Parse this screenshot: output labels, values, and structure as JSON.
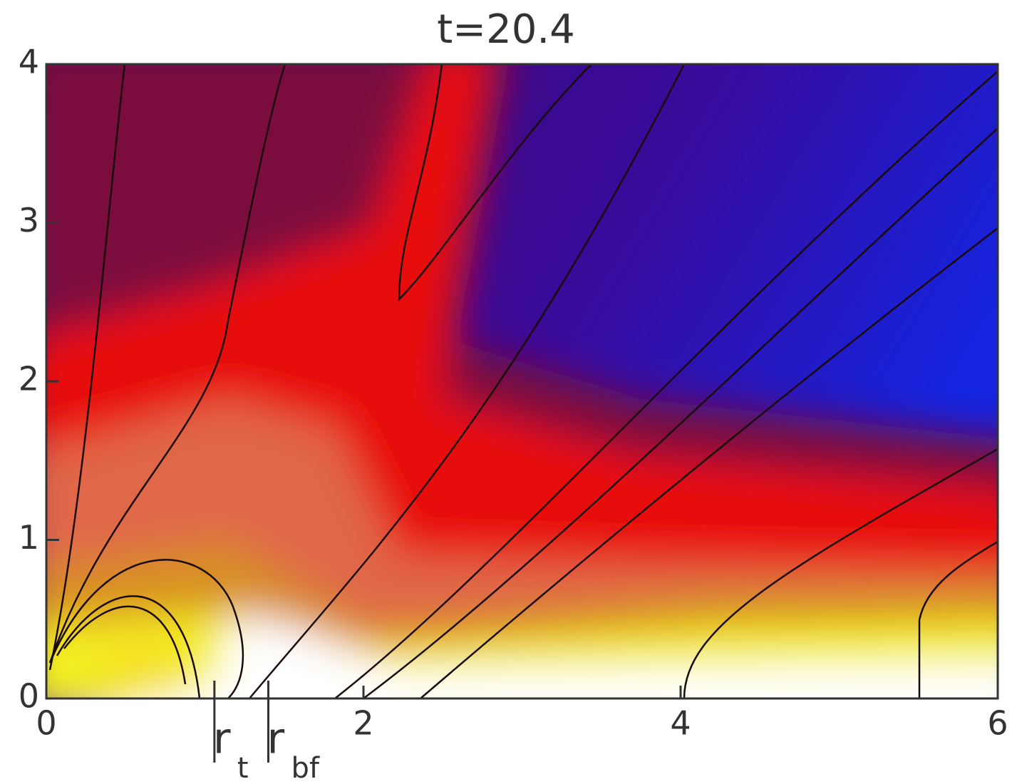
{
  "chart_data": {
    "type": "contour",
    "title": "t=20.4",
    "xlim": [
      0,
      6
    ],
    "ylim": [
      0,
      4
    ],
    "xticks": [
      0,
      2,
      4,
      6
    ],
    "yticks": [
      0,
      1,
      2,
      3,
      4
    ],
    "annotations": [
      {
        "text": "r",
        "subscript": "t",
        "x": 1.06
      },
      {
        "text": "r",
        "subscript": "bf",
        "x": 1.4
      }
    ]
  }
}
